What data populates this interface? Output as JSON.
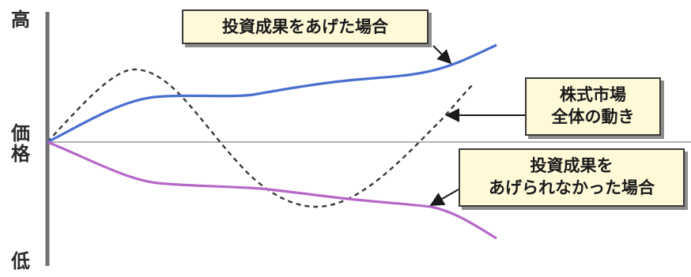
{
  "y_axis": {
    "top": "高",
    "middle": [
      "価",
      "格"
    ],
    "bottom": "低"
  },
  "callouts": {
    "success": {
      "lines": [
        "投資成果をあげた場合"
      ]
    },
    "market": {
      "lines": [
        "株式市場",
        "全体の動き"
      ]
    },
    "failure": {
      "lines": [
        "投資成果を",
        "あげられなかった場合"
      ]
    }
  },
  "colors": {
    "success_line": "#4a6fd0",
    "market_line": "#3a3a3a",
    "failure_line": "#b668c8",
    "axis": "#707070",
    "baseline": "#9a9a9a",
    "callout_bg": "#fff9d8"
  }
}
